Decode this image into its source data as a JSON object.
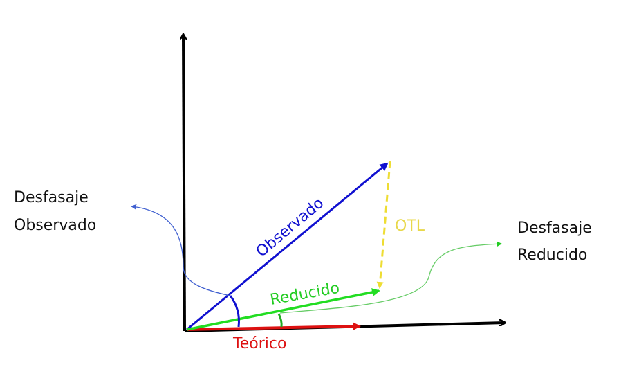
{
  "labels": {
    "phase_observed": [
      "Desfasaje",
      "Observado"
    ],
    "phase_reduced": [
      "Desfasaje",
      "Reducido"
    ],
    "observed": "Observado",
    "reduced": "Reducido",
    "theoretical": "Teórico",
    "otl": "OTL"
  }
}
